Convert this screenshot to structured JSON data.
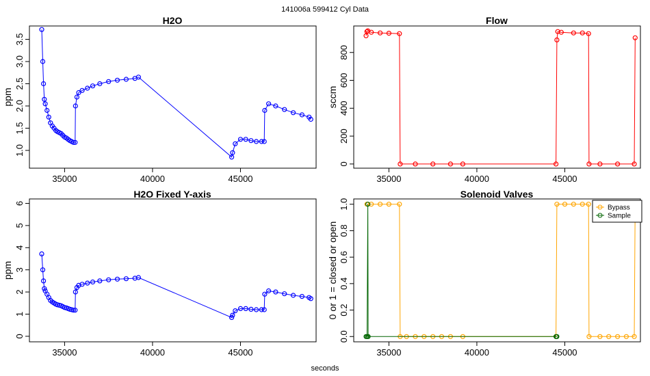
{
  "figure": {
    "header": "141006a    599412   Cyl Data",
    "xlabel": "seconds"
  },
  "colors": {
    "h2o": "#0000ff",
    "flow": "#ff0000",
    "bypass": "#ffa500",
    "sample": "#006400"
  },
  "chart_data": [
    {
      "id": "h2o",
      "type": "scatter",
      "title": "H2O",
      "ylabel": "ppm",
      "xlim": [
        33000,
        49300
      ],
      "ylim": [
        0.6,
        3.8
      ],
      "xticks": [
        35000,
        40000,
        45000
      ],
      "yticks": [
        1.0,
        1.5,
        2.0,
        2.5,
        3.0,
        3.5
      ],
      "series": [
        {
          "points": [
            [
              33700,
              3.72
            ],
            [
              33760,
              3.0
            ],
            [
              33800,
              2.5
            ],
            [
              33850,
              2.15
            ],
            [
              33900,
              2.05
            ],
            [
              34000,
              1.9
            ],
            [
              34100,
              1.75
            ],
            [
              34200,
              1.62
            ],
            [
              34300,
              1.55
            ],
            [
              34400,
              1.5
            ],
            [
              34500,
              1.45
            ],
            [
              34600,
              1.42
            ],
            [
              34700,
              1.4
            ],
            [
              34800,
              1.38
            ],
            [
              34900,
              1.34
            ],
            [
              35000,
              1.3
            ],
            [
              35100,
              1.28
            ],
            [
              35200,
              1.25
            ],
            [
              35300,
              1.22
            ],
            [
              35400,
              1.2
            ],
            [
              35500,
              1.18
            ],
            [
              35600,
              1.18
            ],
            [
              35620,
              2.0
            ],
            [
              35700,
              2.2
            ],
            [
              35800,
              2.3
            ],
            [
              36000,
              2.35
            ],
            [
              36300,
              2.4
            ],
            [
              36600,
              2.45
            ],
            [
              37000,
              2.5
            ],
            [
              37500,
              2.55
            ],
            [
              38000,
              2.58
            ],
            [
              38500,
              2.6
            ],
            [
              39000,
              2.62
            ],
            [
              39200,
              2.65
            ],
            [
              44500,
              0.85
            ],
            [
              44550,
              0.95
            ],
            [
              44700,
              1.15
            ],
            [
              45000,
              1.25
            ],
            [
              45300,
              1.25
            ],
            [
              45600,
              1.22
            ],
            [
              45900,
              1.2
            ],
            [
              46200,
              1.2
            ],
            [
              46350,
              1.2
            ],
            [
              46380,
              1.9
            ],
            [
              46600,
              2.05
            ],
            [
              47000,
              2.0
            ],
            [
              47500,
              1.92
            ],
            [
              48000,
              1.85
            ],
            [
              48500,
              1.8
            ],
            [
              48900,
              1.75
            ],
            [
              49000,
              1.7
            ]
          ]
        }
      ]
    },
    {
      "id": "flow",
      "type": "scatter",
      "title": "Flow",
      "ylabel": "sccm",
      "xlim": [
        33000,
        49300
      ],
      "ylim": [
        -30,
        990
      ],
      "xticks": [
        35000,
        40000,
        45000
      ],
      "yticks": [
        0,
        200,
        400,
        600,
        800
      ],
      "series": [
        {
          "points": [
            [
              33700,
              920
            ],
            [
              33750,
              950
            ],
            [
              33800,
              955
            ],
            [
              34000,
              945
            ],
            [
              34500,
              940
            ],
            [
              35000,
              938
            ],
            [
              35600,
              935
            ],
            [
              35640,
              0
            ],
            [
              36500,
              0
            ],
            [
              37500,
              0
            ],
            [
              38500,
              0
            ],
            [
              39200,
              0
            ],
            [
              44500,
              0
            ],
            [
              44550,
              890
            ],
            [
              44600,
              950
            ],
            [
              44800,
              945
            ],
            [
              45500,
              940
            ],
            [
              46000,
              940
            ],
            [
              46350,
              935
            ],
            [
              46380,
              0
            ],
            [
              47000,
              0
            ],
            [
              48000,
              0
            ],
            [
              48950,
              0
            ],
            [
              49000,
              905
            ]
          ]
        }
      ]
    },
    {
      "id": "h2o-fixed",
      "type": "scatter",
      "title": "H2O Fixed Y-axis",
      "ylabel": "ppm",
      "xlim": [
        33000,
        49300
      ],
      "ylim": [
        -0.25,
        6.2
      ],
      "xticks": [
        35000,
        40000,
        45000
      ],
      "yticks": [
        0,
        1,
        2,
        3,
        4,
        5,
        6
      ],
      "series": [
        {
          "points": [
            [
              33700,
              3.72
            ],
            [
              33760,
              3.0
            ],
            [
              33800,
              2.5
            ],
            [
              33850,
              2.15
            ],
            [
              33900,
              2.05
            ],
            [
              34000,
              1.9
            ],
            [
              34100,
              1.75
            ],
            [
              34200,
              1.62
            ],
            [
              34300,
              1.55
            ],
            [
              34400,
              1.5
            ],
            [
              34500,
              1.45
            ],
            [
              34600,
              1.42
            ],
            [
              34700,
              1.4
            ],
            [
              34800,
              1.38
            ],
            [
              34900,
              1.34
            ],
            [
              35000,
              1.3
            ],
            [
              35100,
              1.28
            ],
            [
              35200,
              1.25
            ],
            [
              35300,
              1.22
            ],
            [
              35400,
              1.2
            ],
            [
              35500,
              1.18
            ],
            [
              35600,
              1.18
            ],
            [
              35620,
              2.0
            ],
            [
              35700,
              2.2
            ],
            [
              35800,
              2.3
            ],
            [
              36000,
              2.35
            ],
            [
              36300,
              2.4
            ],
            [
              36600,
              2.45
            ],
            [
              37000,
              2.5
            ],
            [
              37500,
              2.55
            ],
            [
              38000,
              2.58
            ],
            [
              38500,
              2.6
            ],
            [
              39000,
              2.62
            ],
            [
              39200,
              2.65
            ],
            [
              44500,
              0.85
            ],
            [
              44550,
              0.95
            ],
            [
              44700,
              1.15
            ],
            [
              45000,
              1.25
            ],
            [
              45300,
              1.25
            ],
            [
              45600,
              1.22
            ],
            [
              45900,
              1.2
            ],
            [
              46200,
              1.2
            ],
            [
              46350,
              1.2
            ],
            [
              46380,
              1.9
            ],
            [
              46600,
              2.05
            ],
            [
              47000,
              2.0
            ],
            [
              47500,
              1.92
            ],
            [
              48000,
              1.85
            ],
            [
              48500,
              1.8
            ],
            [
              48900,
              1.75
            ],
            [
              49000,
              1.7
            ]
          ]
        }
      ]
    },
    {
      "id": "valves",
      "type": "line",
      "title": "Solenoid Valves",
      "ylabel": "0 or 1 = closed or open",
      "xlim": [
        33000,
        49300
      ],
      "ylim": [
        -0.04,
        1.04
      ],
      "xticks": [
        35000,
        40000,
        45000
      ],
      "yticks": [
        0.0,
        0.2,
        0.4,
        0.6,
        0.8,
        1.0
      ],
      "legend": {
        "position": "top-right",
        "entries": [
          "Bypass",
          "Sample"
        ]
      },
      "series": [
        {
          "name": "Bypass",
          "color": "#ffa500",
          "points": [
            [
              33750,
              1
            ],
            [
              34000,
              1
            ],
            [
              34500,
              1
            ],
            [
              35000,
              1
            ],
            [
              35600,
              1
            ],
            [
              35640,
              0
            ],
            [
              36000,
              0
            ],
            [
              36500,
              0
            ],
            [
              37000,
              0
            ],
            [
              37500,
              0
            ],
            [
              38000,
              0
            ],
            [
              38500,
              0
            ],
            [
              39200,
              0
            ],
            [
              44500,
              0
            ],
            [
              44550,
              1
            ],
            [
              45000,
              1
            ],
            [
              45500,
              1
            ],
            [
              46000,
              1
            ],
            [
              46350,
              1
            ],
            [
              46380,
              0
            ],
            [
              47000,
              0
            ],
            [
              47500,
              0
            ],
            [
              48000,
              0
            ],
            [
              48500,
              0
            ],
            [
              48950,
              0
            ],
            [
              49000,
              1
            ]
          ]
        },
        {
          "name": "Sample",
          "color": "#006400",
          "points": [
            [
              33700,
              0
            ],
            [
              33760,
              0
            ],
            [
              33800,
              1
            ],
            [
              33820,
              0
            ],
            [
              44500,
              0
            ],
            [
              44550,
              0
            ]
          ]
        }
      ]
    }
  ]
}
